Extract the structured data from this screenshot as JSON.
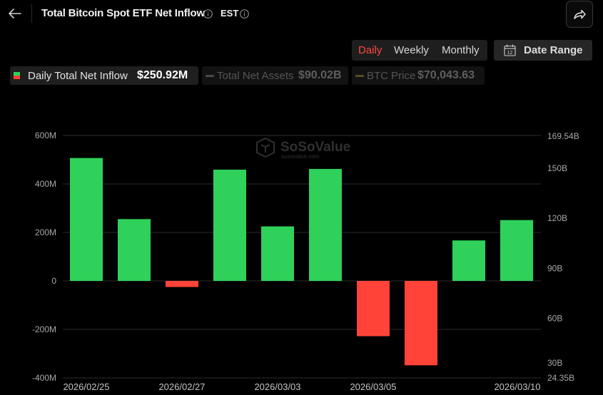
{
  "header": {
    "title": "Total Bitcoin Spot ETF Net Inflow",
    "timezone": "EST"
  },
  "period_tabs": [
    {
      "label": "Daily",
      "active": true
    },
    {
      "label": "Weekly",
      "active": false
    },
    {
      "label": "Monthly",
      "active": false
    }
  ],
  "date_range": {
    "label": "Date Range",
    "icon_text": "12"
  },
  "legend": [
    {
      "label": "Daily Total Net Inflow",
      "value": "$250.92M",
      "active": true
    },
    {
      "label": "Total Net Assets",
      "value": "$90.02B",
      "active": false
    },
    {
      "label": "BTC Price",
      "value": "$70,043.63",
      "active": false
    }
  ],
  "watermark": {
    "brand": "SoSoValue",
    "url": "sosovalue.com"
  },
  "colors": {
    "positive": "#2fd15a",
    "negative": "#ff4338",
    "accent": "#ff4a3d",
    "grid": "#2b2b2b"
  },
  "chart_data": {
    "type": "bar",
    "title": "Total Bitcoin Spot ETF Net Inflow",
    "series": [
      {
        "name": "Daily Total Net Inflow",
        "dates": [
          "2026/02/25",
          "2026/02/26",
          "2026/02/27",
          "2026/03/02",
          "2026/03/03",
          "2026/03/04",
          "2026/03/05",
          "2026/03/06",
          "2026/03/09",
          "2026/03/10"
        ],
        "values": [
          507,
          255,
          -25,
          459,
          225,
          462,
          -228,
          -348,
          167,
          251
        ]
      }
    ],
    "x_tick_labels": [
      "2026/02/25",
      "2026/02/27",
      "2026/03/03",
      "2026/03/05",
      "2026/03/10"
    ],
    "y_left": {
      "unit": "USD",
      "ylim": [
        -400,
        600
      ],
      "tick_labels": [
        "600M",
        "400M",
        "200M",
        "0",
        "-200M",
        "-400M"
      ],
      "tick_values": [
        600,
        400,
        200,
        0,
        -200,
        -400
      ]
    },
    "y_right": {
      "unit": "USD",
      "ylim": [
        24.35,
        169.54
      ],
      "tick_labels": [
        "169.54B",
        "150B",
        "120B",
        "90B",
        "60B",
        "30B",
        "24.35B"
      ],
      "tick_values": [
        169.54,
        150,
        120,
        90,
        60,
        30,
        24.35
      ]
    },
    "grid": true
  }
}
